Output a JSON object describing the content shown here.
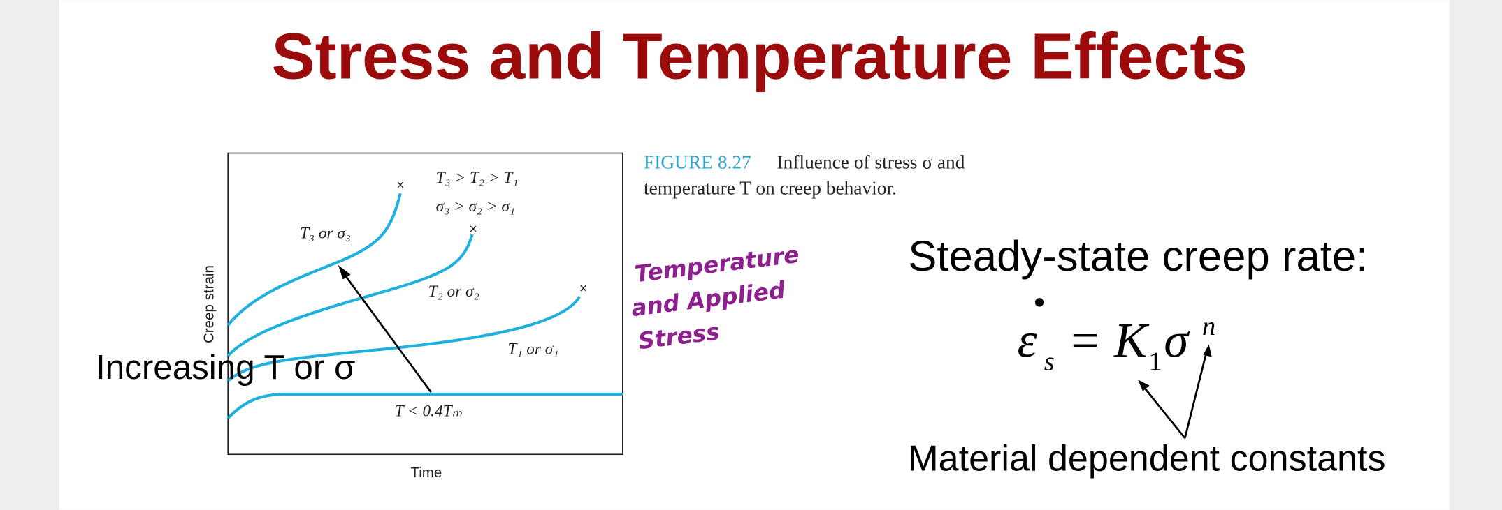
{
  "header": {
    "title": "Stress and Temperature Effects"
  },
  "figure": {
    "y_axis_label": "Creep strain",
    "x_axis_label": "Time",
    "legend": [
      "T₃ > T₂ > T₁",
      "σ₃ > σ₂ > σ₁"
    ],
    "curves": [
      "T₃ or σ₃",
      "T₂ or σ₂",
      "T₁ or σ₁",
      "T < 0.4Tₘ"
    ],
    "caption_label": "FIGURE 8.27",
    "caption_lines": [
      "Influence of stress σ and",
      "temperature T on creep behavior."
    ]
  },
  "annotation": "Increasing T or σ",
  "handwriting": [
    "Temperature",
    "and  Applied",
    "Stress"
  ],
  "rate_heading": "Steady-state creep rate:",
  "equation": {
    "lhs": "ε",
    "lhs_sub": "s",
    "eq": "=",
    "k": "K",
    "k_sub": "1",
    "sigma": "σ",
    "exp": "n"
  },
  "constants_note": "Material dependent constants"
}
